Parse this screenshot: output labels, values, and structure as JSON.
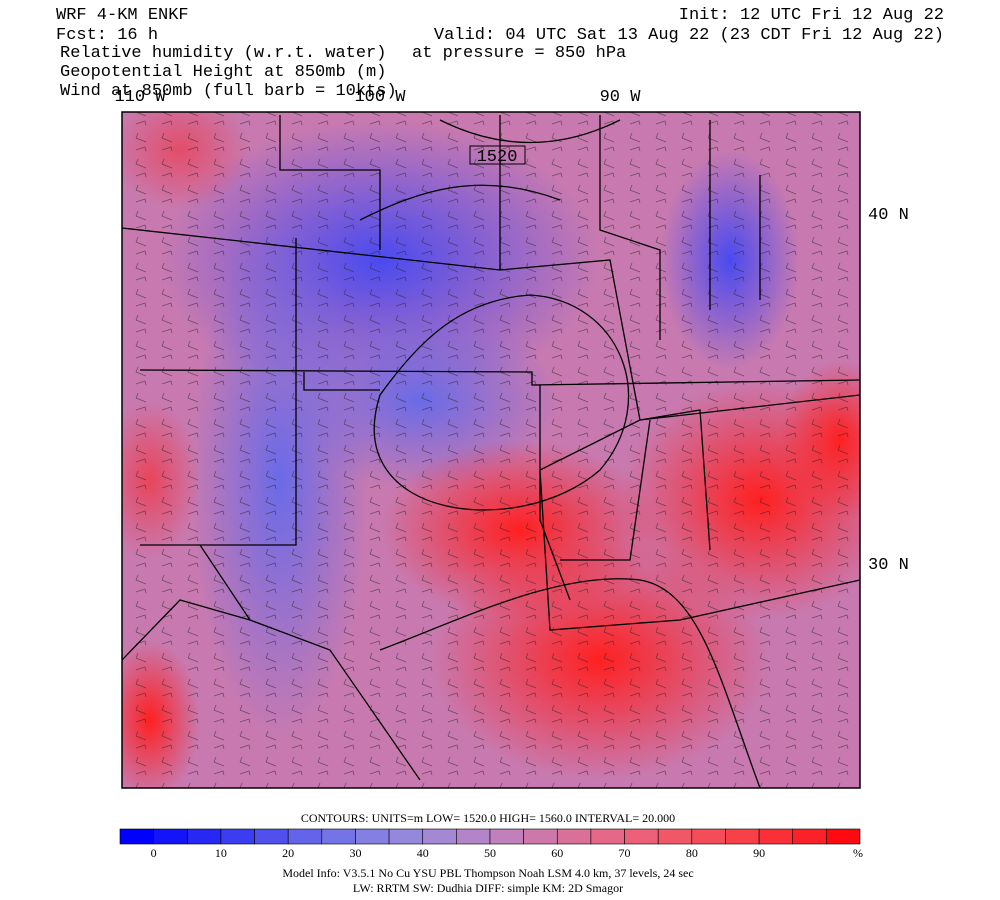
{
  "header": {
    "model": "WRF 4-KM ENKF",
    "forecast": "Fcst:   16 h",
    "init": "Init: 12 UTC Fri 12 Aug 22",
    "valid": "Valid: 04 UTC Sat 13 Aug 22 (23 CDT Fri 12 Aug 22)",
    "fields": [
      "Relative humidity (w.r.t. water)",
      "Geopotential Height at 850mb (m)",
      "Wind at 850mb (full barb = 10kts)"
    ],
    "pressure": "at pressure =  850 hPa"
  },
  "map": {
    "lon_labels": [
      "110 W",
      "100 W",
      "90 W"
    ],
    "lat_labels": [
      "40 N",
      "30 N"
    ],
    "contour_label": "1520"
  },
  "contours_info": "CONTOURS:  UNITS=m  LOW=   1520.0      HIGH=   1560.0      INTERVAL=    20.000",
  "colorbar": {
    "ticks": [
      0,
      10,
      20,
      30,
      40,
      50,
      60,
      70,
      80,
      90
    ],
    "unit": "%",
    "colors": [
      "#0000ff",
      "#1414f8",
      "#2828f4",
      "#3c3cf0",
      "#5050ec",
      "#6464ea",
      "#7474e6",
      "#8480e2",
      "#9488dc",
      "#a488d4",
      "#b484c8",
      "#c080bc",
      "#cc78a8",
      "#d87098",
      "#e46888",
      "#ec6078",
      "#f05868",
      "#f44c58",
      "#f84048",
      "#fa3038",
      "#fc2028",
      "#ff0a10"
    ]
  },
  "footer": [
    "Model Info: V3.5.1    No Cu    YSU PBL  Thompson     Noah LSM  4.0 km,  37 levels,    24 sec",
    "LW: RRTM SW: Dudhia  DIFF: simple KM: 2D Smagor"
  ]
}
